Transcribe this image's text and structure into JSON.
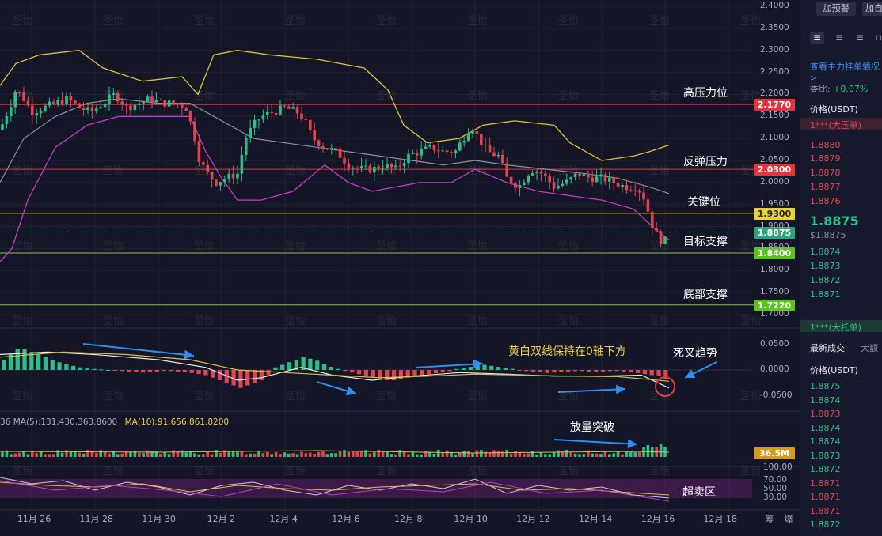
{
  "watermark": "圣怡",
  "annotations": {
    "high_pressure": "高压力位",
    "rebound_pressure": "反弹压力",
    "key_level": "关键位",
    "target_support": "目标支撑",
    "bottom_support": "底部支撑",
    "macd_note": "黄白双线保持在0轴下方",
    "death_cross": "死叉趋势",
    "volume_break": "放量突破",
    "oversold": "超卖区"
  },
  "price_tags": {
    "high_pressure": "2.1770",
    "rebound_pressure": "2.0300",
    "key_level": "1.9300",
    "current": "1.8875",
    "target_support": "1.8400",
    "bottom_support": "1.7220",
    "volume_current": "36.5M"
  },
  "colors": {
    "bg": "#141627",
    "up": "#2ebd85",
    "down": "#e0454f",
    "boll_upper": "#d9c33a",
    "boll_mid": "#8a8fa3",
    "boll_lower": "#c23fc0",
    "line_red": "#e0353f",
    "line_yellow": "#d9c33a",
    "line_green": "#7acc2a",
    "arrow_blue": "#2d8ff0"
  },
  "ma_legend": {
    "ma5": "MA(5):131,430,363.8600",
    "ma10": "MA(10):91,656,861.8200",
    "prefix": "36"
  },
  "chart_data": {
    "type": "candlestick",
    "price_axis": [
      "2.4000",
      "2.3500",
      "2.3000",
      "2.2500",
      "2.2000",
      "2.1500",
      "2.1000",
      "2.0500",
      "2.0000",
      "1.9500",
      "1.9000",
      "1.8500",
      "1.8000",
      "1.7500",
      "1.7000"
    ],
    "macd_axis": [
      "0.0500",
      "0.0000",
      "-0.0500"
    ],
    "rsi_axis": [
      "100.00",
      "70.00",
      "50.00",
      "30.00"
    ],
    "x_axis": [
      "11月 26",
      "11月 28",
      "11月 30",
      "12月 2",
      "12月 4",
      "12月 6",
      "12月 8",
      "12月 10",
      "12月 12",
      "12月 14",
      "12月 16",
      "12月 18"
    ],
    "levels": [
      {
        "name": "high_pressure",
        "value": 2.177,
        "color": "red"
      },
      {
        "name": "rebound_pressure",
        "value": 2.03,
        "color": "red"
      },
      {
        "name": "key_level",
        "value": 1.93,
        "color": "yellow"
      },
      {
        "name": "target_support",
        "value": 1.84,
        "color": "green"
      },
      {
        "name": "bottom_support",
        "value": 1.722,
        "color": "green"
      }
    ],
    "current_price": 1.8875,
    "close_path": [
      [
        0,
        2.12
      ],
      [
        12,
        2.17
      ],
      [
        20,
        2.21
      ],
      [
        30,
        2.19
      ],
      [
        40,
        2.16
      ],
      [
        55,
        2.17
      ],
      [
        70,
        2.18
      ],
      [
        85,
        2.19
      ],
      [
        100,
        2.17
      ],
      [
        115,
        2.16
      ],
      [
        130,
        2.18
      ],
      [
        145,
        2.2
      ],
      [
        160,
        2.17
      ],
      [
        175,
        2.18
      ],
      [
        190,
        2.19
      ],
      [
        205,
        2.18
      ],
      [
        220,
        2.18
      ],
      [
        235,
        2.17
      ],
      [
        245,
        2.11
      ],
      [
        252,
        2.05
      ],
      [
        262,
        2.02
      ],
      [
        272,
        2.0
      ],
      [
        285,
        2.01
      ],
      [
        300,
        2.02
      ],
      [
        310,
        2.1
      ],
      [
        320,
        2.13
      ],
      [
        330,
        2.15
      ],
      [
        345,
        2.16
      ],
      [
        360,
        2.17
      ],
      [
        375,
        2.16
      ],
      [
        385,
        2.14
      ],
      [
        395,
        2.1
      ],
      [
        410,
        2.08
      ],
      [
        425,
        2.07
      ],
      [
        440,
        2.04
      ],
      [
        455,
        2.03
      ],
      [
        470,
        2.03
      ],
      [
        485,
        2.04
      ],
      [
        500,
        2.03
      ],
      [
        515,
        2.06
      ],
      [
        530,
        2.07
      ],
      [
        545,
        2.08
      ],
      [
        560,
        2.07
      ],
      [
        575,
        2.07
      ],
      [
        585,
        2.1
      ],
      [
        595,
        2.13
      ],
      [
        605,
        2.1
      ],
      [
        615,
        2.07
      ],
      [
        630,
        2.06
      ],
      [
        640,
        2.01
      ],
      [
        655,
        1.99
      ],
      [
        670,
        2.03
      ],
      [
        685,
        2.02
      ],
      [
        700,
        1.99
      ],
      [
        715,
        2.0
      ],
      [
        730,
        2.02
      ],
      [
        745,
        2.01
      ],
      [
        760,
        2.01
      ],
      [
        775,
        2.0
      ],
      [
        790,
        1.99
      ],
      [
        805,
        1.99
      ],
      [
        815,
        1.96
      ],
      [
        822,
        1.91
      ],
      [
        830,
        1.88
      ],
      [
        838,
        1.86
      ],
      [
        845,
        1.8875
      ]
    ],
    "boll_upper": [
      [
        0,
        2.22
      ],
      [
        20,
        2.27
      ],
      [
        50,
        2.29
      ],
      [
        100,
        2.3
      ],
      [
        130,
        2.26
      ],
      [
        180,
        2.23
      ],
      [
        230,
        2.24
      ],
      [
        250,
        2.2
      ],
      [
        270,
        2.29
      ],
      [
        300,
        2.3
      ],
      [
        340,
        2.29
      ],
      [
        400,
        2.28
      ],
      [
        460,
        2.26
      ],
      [
        490,
        2.21
      ],
      [
        510,
        2.13
      ],
      [
        540,
        2.09
      ],
      [
        580,
        2.1
      ],
      [
        610,
        2.13
      ],
      [
        650,
        2.14
      ],
      [
        700,
        2.13
      ],
      [
        720,
        2.09
      ],
      [
        760,
        2.05
      ],
      [
        800,
        2.06
      ],
      [
        820,
        2.07
      ],
      [
        845,
        2.085
      ]
    ],
    "boll_mid": [
      [
        0,
        2.0
      ],
      [
        30,
        2.1
      ],
      [
        70,
        2.15
      ],
      [
        110,
        2.18
      ],
      [
        150,
        2.19
      ],
      [
        200,
        2.18
      ],
      [
        240,
        2.18
      ],
      [
        260,
        2.16
      ],
      [
        290,
        2.13
      ],
      [
        320,
        2.1
      ],
      [
        360,
        2.09
      ],
      [
        400,
        2.08
      ],
      [
        440,
        2.07
      ],
      [
        480,
        2.06
      ],
      [
        520,
        2.05
      ],
      [
        560,
        2.04
      ],
      [
        600,
        2.05
      ],
      [
        640,
        2.04
      ],
      [
        690,
        2.03
      ],
      [
        740,
        2.02
      ],
      [
        780,
        2.01
      ],
      [
        820,
        1.99
      ],
      [
        845,
        1.975
      ]
    ],
    "boll_lower": [
      [
        0,
        1.82
      ],
      [
        15,
        1.85
      ],
      [
        35,
        1.96
      ],
      [
        70,
        2.08
      ],
      [
        110,
        2.13
      ],
      [
        150,
        2.15
      ],
      [
        200,
        2.15
      ],
      [
        240,
        2.15
      ],
      [
        260,
        2.07
      ],
      [
        280,
        2.01
      ],
      [
        300,
        1.96
      ],
      [
        330,
        1.96
      ],
      [
        370,
        1.98
      ],
      [
        410,
        2.04
      ],
      [
        440,
        2.0
      ],
      [
        470,
        1.98
      ],
      [
        500,
        1.99
      ],
      [
        530,
        2.0
      ],
      [
        570,
        2.0
      ],
      [
        600,
        2.03
      ],
      [
        640,
        2.0
      ],
      [
        680,
        1.98
      ],
      [
        720,
        1.97
      ],
      [
        760,
        1.96
      ],
      [
        800,
        1.94
      ],
      [
        830,
        1.89
      ],
      [
        845,
        1.87
      ]
    ],
    "macd_hist": [
      0.02,
      0.03,
      0.04,
      0.04,
      0.035,
      0.03,
      0.025,
      0.02,
      0.015,
      0.012,
      0.008,
      0.005,
      0.003,
      0.002,
      0.001,
      0,
      -0.001,
      -0.002,
      -0.003,
      -0.004,
      -0.005,
      -0.004,
      -0.003,
      -0.002,
      -0.002,
      -0.003,
      -0.004,
      -0.006,
      -0.008,
      -0.01,
      -0.015,
      -0.02,
      -0.025,
      -0.03,
      -0.035,
      -0.03,
      -0.025,
      -0.02,
      -0.01,
      0.005,
      0.01,
      0.015,
      0.02,
      0.025,
      0.022,
      0.018,
      0.012,
      0.006,
      0.002,
      -0.002,
      -0.005,
      -0.008,
      -0.012,
      -0.015,
      -0.018,
      -0.02,
      -0.02,
      -0.018,
      -0.015,
      -0.012,
      -0.01,
      -0.008,
      -0.006,
      -0.004,
      -0.002,
      0.002,
      0.004,
      0.006,
      0.008,
      0.01,
      0.008,
      0.006,
      0.004,
      0.002,
      -0.001,
      -0.002,
      -0.003,
      -0.004,
      -0.006,
      -0.005,
      -0.004,
      -0.003,
      -0.002,
      -0.002,
      -0.003,
      -0.004,
      -0.003,
      -0.002,
      -0.002,
      -0.003,
      -0.004,
      -0.006,
      -0.008,
      -0.01,
      -0.012,
      -0.018
    ],
    "macd_dif": [
      [
        0,
        0.03
      ],
      [
        60,
        0.035
      ],
      [
        120,
        0.03
      ],
      [
        200,
        0.02
      ],
      [
        260,
        0.005
      ],
      [
        300,
        -0.02
      ],
      [
        330,
        -0.015
      ],
      [
        380,
        0.005
      ],
      [
        420,
        -0.01
      ],
      [
        470,
        -0.02
      ],
      [
        520,
        -0.012
      ],
      [
        580,
        -0.005
      ],
      [
        640,
        -0.008
      ],
      [
        700,
        -0.012
      ],
      [
        760,
        -0.012
      ],
      [
        810,
        -0.01
      ],
      [
        845,
        -0.035
      ]
    ],
    "macd_dea": [
      [
        0,
        0.025
      ],
      [
        80,
        0.035
      ],
      [
        160,
        0.03
      ],
      [
        240,
        0.02
      ],
      [
        300,
        0.0
      ],
      [
        360,
        -0.005
      ],
      [
        420,
        -0.01
      ],
      [
        480,
        -0.015
      ],
      [
        540,
        -0.012
      ],
      [
        600,
        -0.008
      ],
      [
        660,
        -0.01
      ],
      [
        720,
        -0.012
      ],
      [
        780,
        -0.013
      ],
      [
        845,
        -0.022
      ]
    ],
    "rsi_axis_note": "RSI oversold"
  },
  "panel": {
    "btn1": "加预警",
    "btn2": "加自",
    "order_book_link": "查看主力挂单情况 >",
    "ratio_label": "委比:",
    "ratio_value": "+0.07%",
    "price_header": "价格(USDT)",
    "big_sell": "1***(大压单)",
    "asks": [
      "1.8880",
      "1.8879",
      "1.8878",
      "1.8877",
      "1.8876"
    ],
    "last_price": "1.8875",
    "last_price_usd": "$1.8875",
    "bids": [
      "1.8874",
      "1.8873",
      "1.8872",
      "1.8871"
    ],
    "big_buy": "1***(大托单)",
    "tab_trades": "最新成交",
    "tab_big": "大额",
    "trades_header": "价格(USDT)",
    "trades": [
      {
        "p": "1.8875",
        "side": "up"
      },
      {
        "p": "1.8874",
        "side": "up"
      },
      {
        "p": "1.8873",
        "side": "down"
      },
      {
        "p": "1.8874",
        "side": "up"
      },
      {
        "p": "1.8874",
        "side": "up"
      },
      {
        "p": "1.8873",
        "side": "up"
      },
      {
        "p": "1.8872",
        "side": "up"
      },
      {
        "p": "1.8871",
        "side": "down"
      },
      {
        "p": "1.8871",
        "side": "down"
      },
      {
        "p": "1.8871",
        "side": "down"
      },
      {
        "p": "1.8872",
        "side": "up"
      }
    ],
    "bottom_labels": [
      "筹",
      "爆"
    ]
  }
}
